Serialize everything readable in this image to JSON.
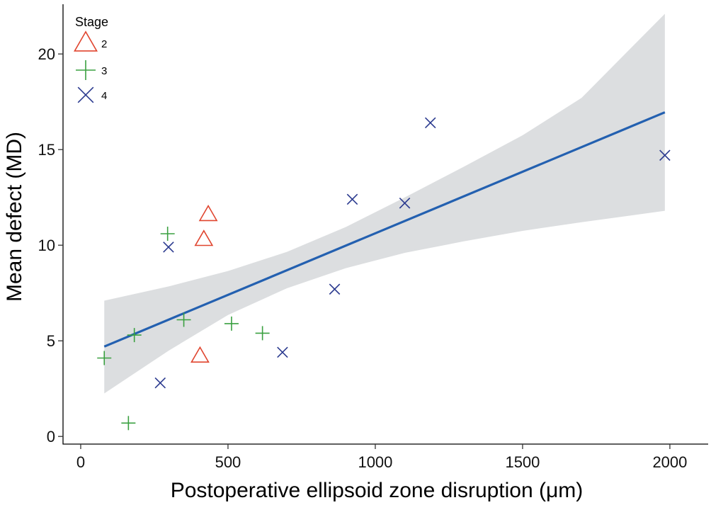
{
  "chart_data": {
    "type": "scatter",
    "title": "",
    "xlabel": "Postoperative ellipsoid zone disruption (μm)",
    "ylabel": "Mean defect (MD)",
    "xlim": [
      -60,
      2130
    ],
    "ylim": [
      -0.4,
      22.6
    ],
    "x_ticks": [
      0,
      500,
      1000,
      1500,
      2000
    ],
    "y_ticks": [
      0,
      5,
      10,
      15,
      20
    ],
    "grid": false,
    "legend": {
      "title": "Stage",
      "placement": "top-left",
      "entries": [
        {
          "label": "2",
          "marker": "triangle",
          "color": "#e0452f"
        },
        {
          "label": "3",
          "marker": "plus",
          "color": "#3aa040"
        },
        {
          "label": "4",
          "marker": "x",
          "color": "#2b3a8f"
        }
      ]
    },
    "series": [
      {
        "name": "2",
        "marker": "triangle",
        "color": "#e0452f",
        "points": [
          [
            433,
            11.6
          ],
          [
            418,
            10.3
          ],
          [
            405,
            4.2
          ]
        ]
      },
      {
        "name": "3",
        "marker": "plus",
        "color": "#3aa040",
        "points": [
          [
            295,
            10.6
          ],
          [
            182,
            5.3
          ],
          [
            350,
            6.1
          ],
          [
            512,
            5.9
          ],
          [
            617,
            5.4
          ],
          [
            80,
            4.1
          ],
          [
            162,
            0.7
          ]
        ]
      },
      {
        "name": "4",
        "marker": "x",
        "color": "#2b3a8f",
        "points": [
          [
            298,
            9.9
          ],
          [
            922,
            12.4
          ],
          [
            1100,
            12.2
          ],
          [
            1187,
            16.4
          ],
          [
            1983,
            14.7
          ],
          [
            862,
            7.7
          ],
          [
            685,
            4.4
          ],
          [
            270,
            2.8
          ]
        ]
      }
    ],
    "fit": {
      "type": "linear",
      "color": "#2360b0",
      "band_color": "#dcdee0",
      "line": [
        [
          80,
          4.7
        ],
        [
          1983,
          16.95
        ]
      ],
      "ci_band": [
        {
          "x": 80,
          "lower": 2.25,
          "upper": 7.1
        },
        {
          "x": 300,
          "lower": 4.5,
          "upper": 7.85
        },
        {
          "x": 500,
          "lower": 6.35,
          "upper": 8.65
        },
        {
          "x": 700,
          "lower": 7.75,
          "upper": 9.65
        },
        {
          "x": 900,
          "lower": 8.8,
          "upper": 10.95
        },
        {
          "x": 1100,
          "lower": 9.6,
          "upper": 12.5
        },
        {
          "x": 1300,
          "lower": 10.2,
          "upper": 14.1
        },
        {
          "x": 1500,
          "lower": 10.75,
          "upper": 15.75
        },
        {
          "x": 1700,
          "lower": 11.2,
          "upper": 17.7
        },
        {
          "x": 1983,
          "lower": 11.8,
          "upper": 22.1
        }
      ]
    }
  }
}
